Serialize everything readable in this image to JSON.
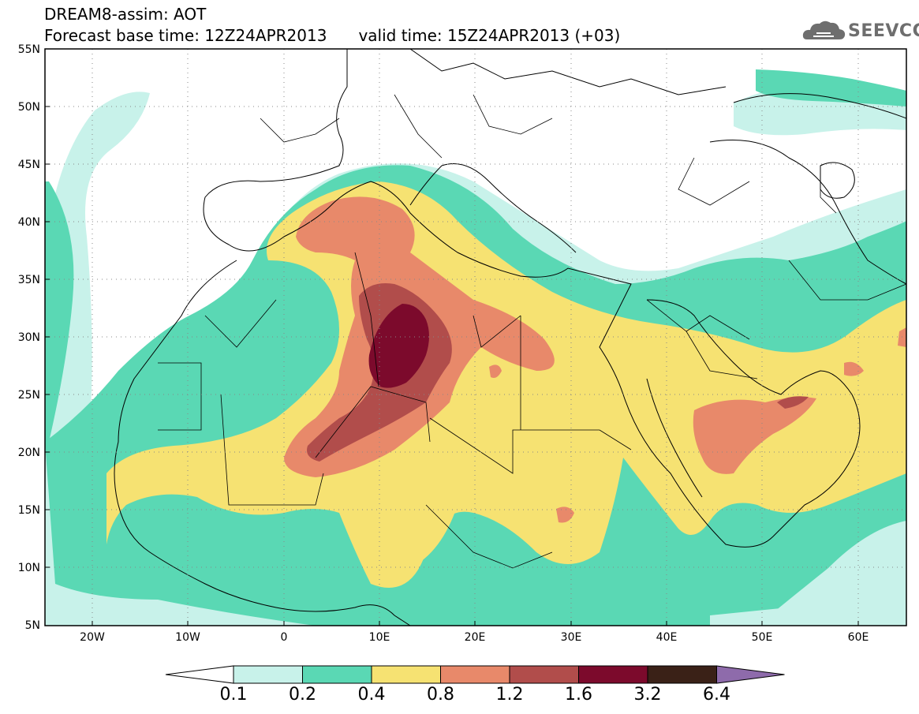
{
  "title": {
    "line1": "DREAM8-assim: AOT",
    "base_time": "Forecast base time: 12Z24APR2013",
    "valid_time": "valid time: 15Z24APR2013 (+03)"
  },
  "logo": {
    "text": "SEEVCCC",
    "icon": "cloud-icon"
  },
  "axes": {
    "lat_labels": [
      "55N",
      "50N",
      "45N",
      "40N",
      "35N",
      "30N",
      "25N",
      "20N",
      "15N",
      "10N",
      "5N"
    ],
    "lon_labels": [
      "20W",
      "10W",
      "0",
      "10E",
      "20E",
      "30E",
      "40E",
      "50E",
      "60E"
    ],
    "lon_range": [
      -25,
      65
    ],
    "lat_range": [
      5,
      55
    ],
    "grid": "dotted"
  },
  "colorbar": {
    "labels": [
      "0.1",
      "0.2",
      "0.4",
      "0.8",
      "1.2",
      "1.6",
      "3.2",
      "6.4"
    ],
    "colors": [
      "#ffffff",
      "#c8f2ea",
      "#5ad8b4",
      "#f6e272",
      "#e8896a",
      "#b14d4b",
      "#7c0a2c",
      "#3a2117",
      "#8e6bab"
    ]
  },
  "chart_data": {
    "type": "heatmap",
    "variable": "AOT",
    "levels": [
      0.1,
      0.2,
      0.4,
      0.8,
      1.2,
      1.6,
      3.2,
      6.4
    ]
  }
}
